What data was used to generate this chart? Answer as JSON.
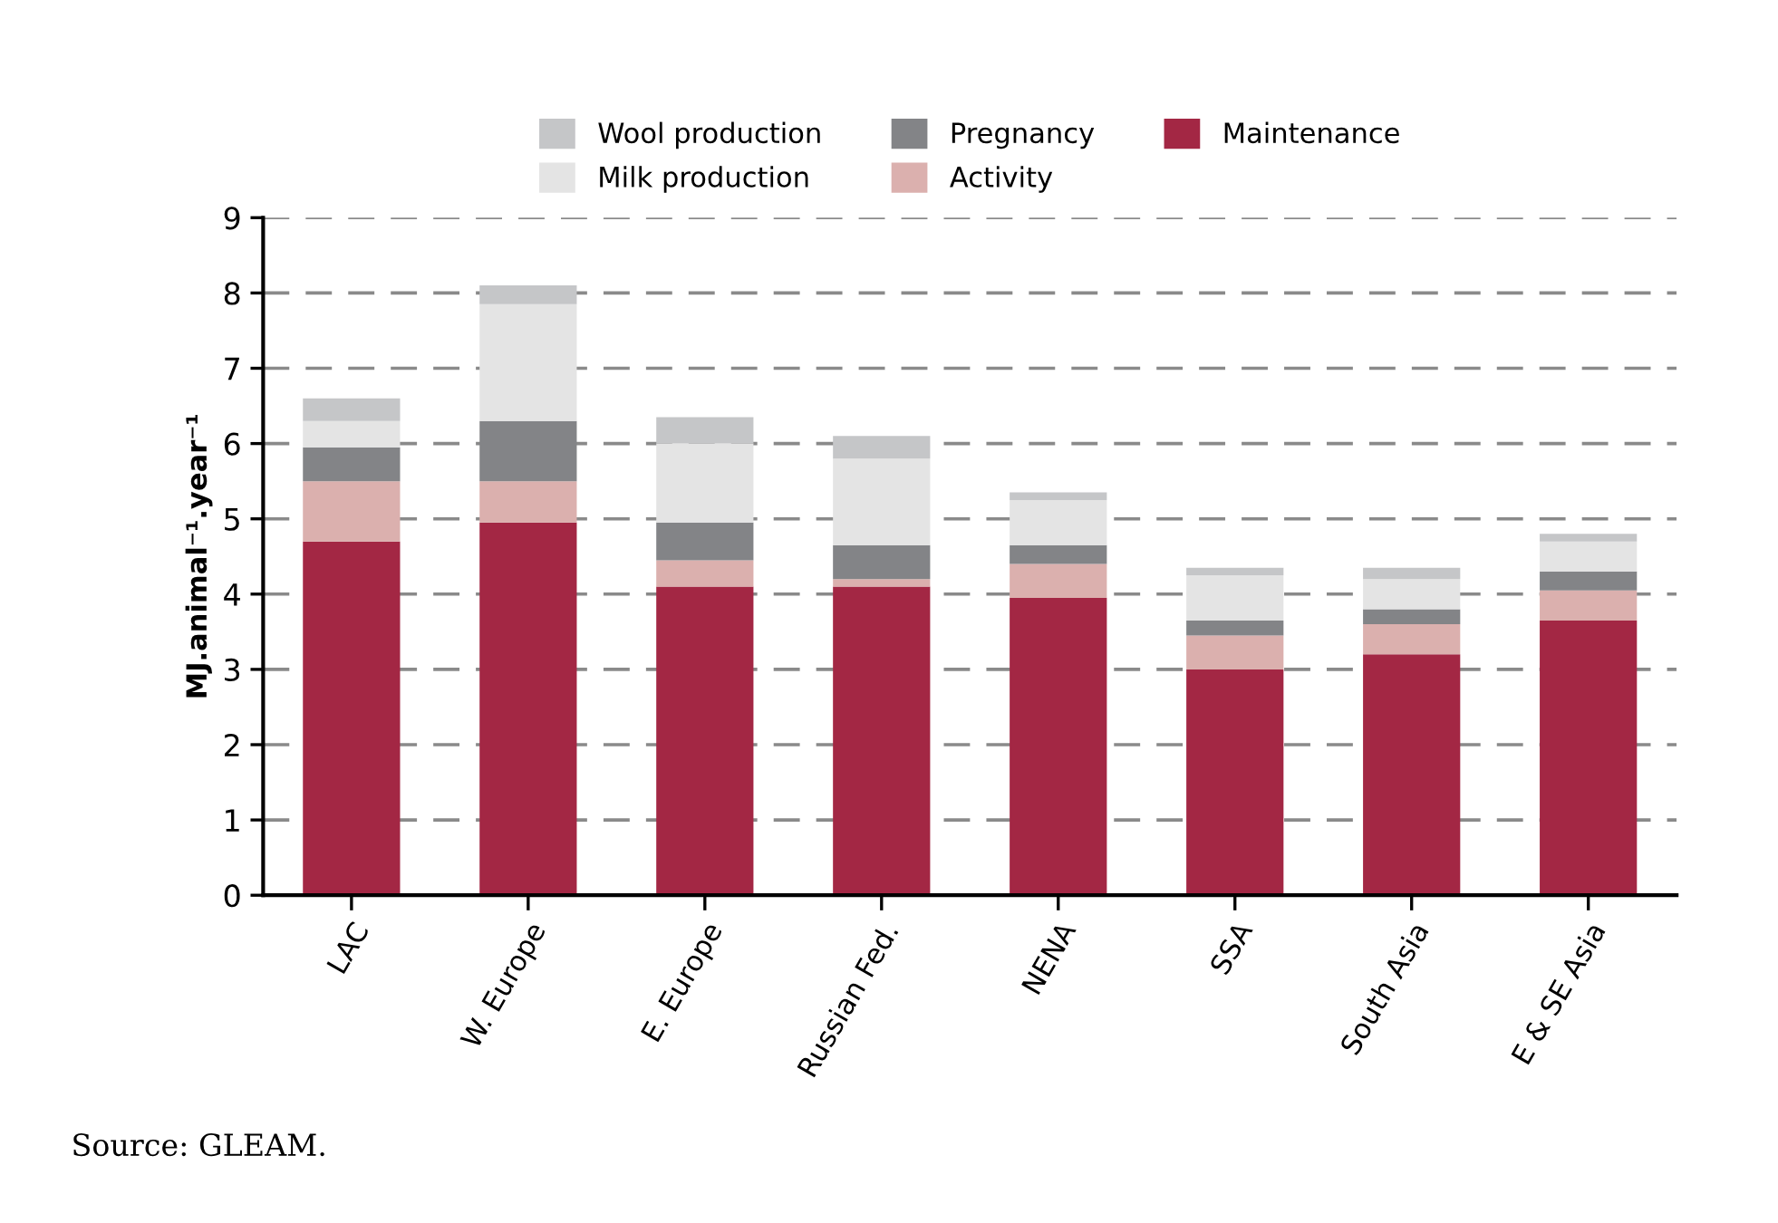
{
  "chart_data": {
    "type": "bar",
    "stacked": true,
    "ylabel": "MJ.animal⁻¹.year⁻¹",
    "categories": [
      "LAC",
      "W. Europe",
      "E. Europe",
      "Russian Fed.",
      "NENA",
      "SSA",
      "South Asia",
      "E & SE Asia"
    ],
    "series": [
      {
        "name": "Maintenance",
        "color": "#a32744",
        "values": [
          4.7,
          4.95,
          4.1,
          4.1,
          3.95,
          3.0,
          3.2,
          3.65
        ]
      },
      {
        "name": "Activity",
        "color": "#dbb0ae",
        "values": [
          0.8,
          0.55,
          0.35,
          0.1,
          0.45,
          0.45,
          0.4,
          0.4
        ]
      },
      {
        "name": "Pregnancy",
        "color": "#838487",
        "values": [
          0.45,
          0.8,
          0.5,
          0.45,
          0.25,
          0.2,
          0.2,
          0.25
        ]
      },
      {
        "name": "Milk production",
        "color": "#e4e4e4",
        "values": [
          0.35,
          1.55,
          1.05,
          1.15,
          0.6,
          0.6,
          0.4,
          0.4
        ]
      },
      {
        "name": "Wool production",
        "color": "#c5c6c8",
        "values": [
          0.3,
          0.25,
          0.35,
          0.3,
          0.1,
          0.1,
          0.15,
          0.1
        ]
      }
    ],
    "ylim": [
      0,
      9
    ],
    "yticks": [
      0,
      1,
      2,
      3,
      4,
      5,
      6,
      7,
      8,
      9
    ],
    "grid": "y",
    "legend": "top",
    "annotations": [
      "Source: GLEAM."
    ]
  }
}
